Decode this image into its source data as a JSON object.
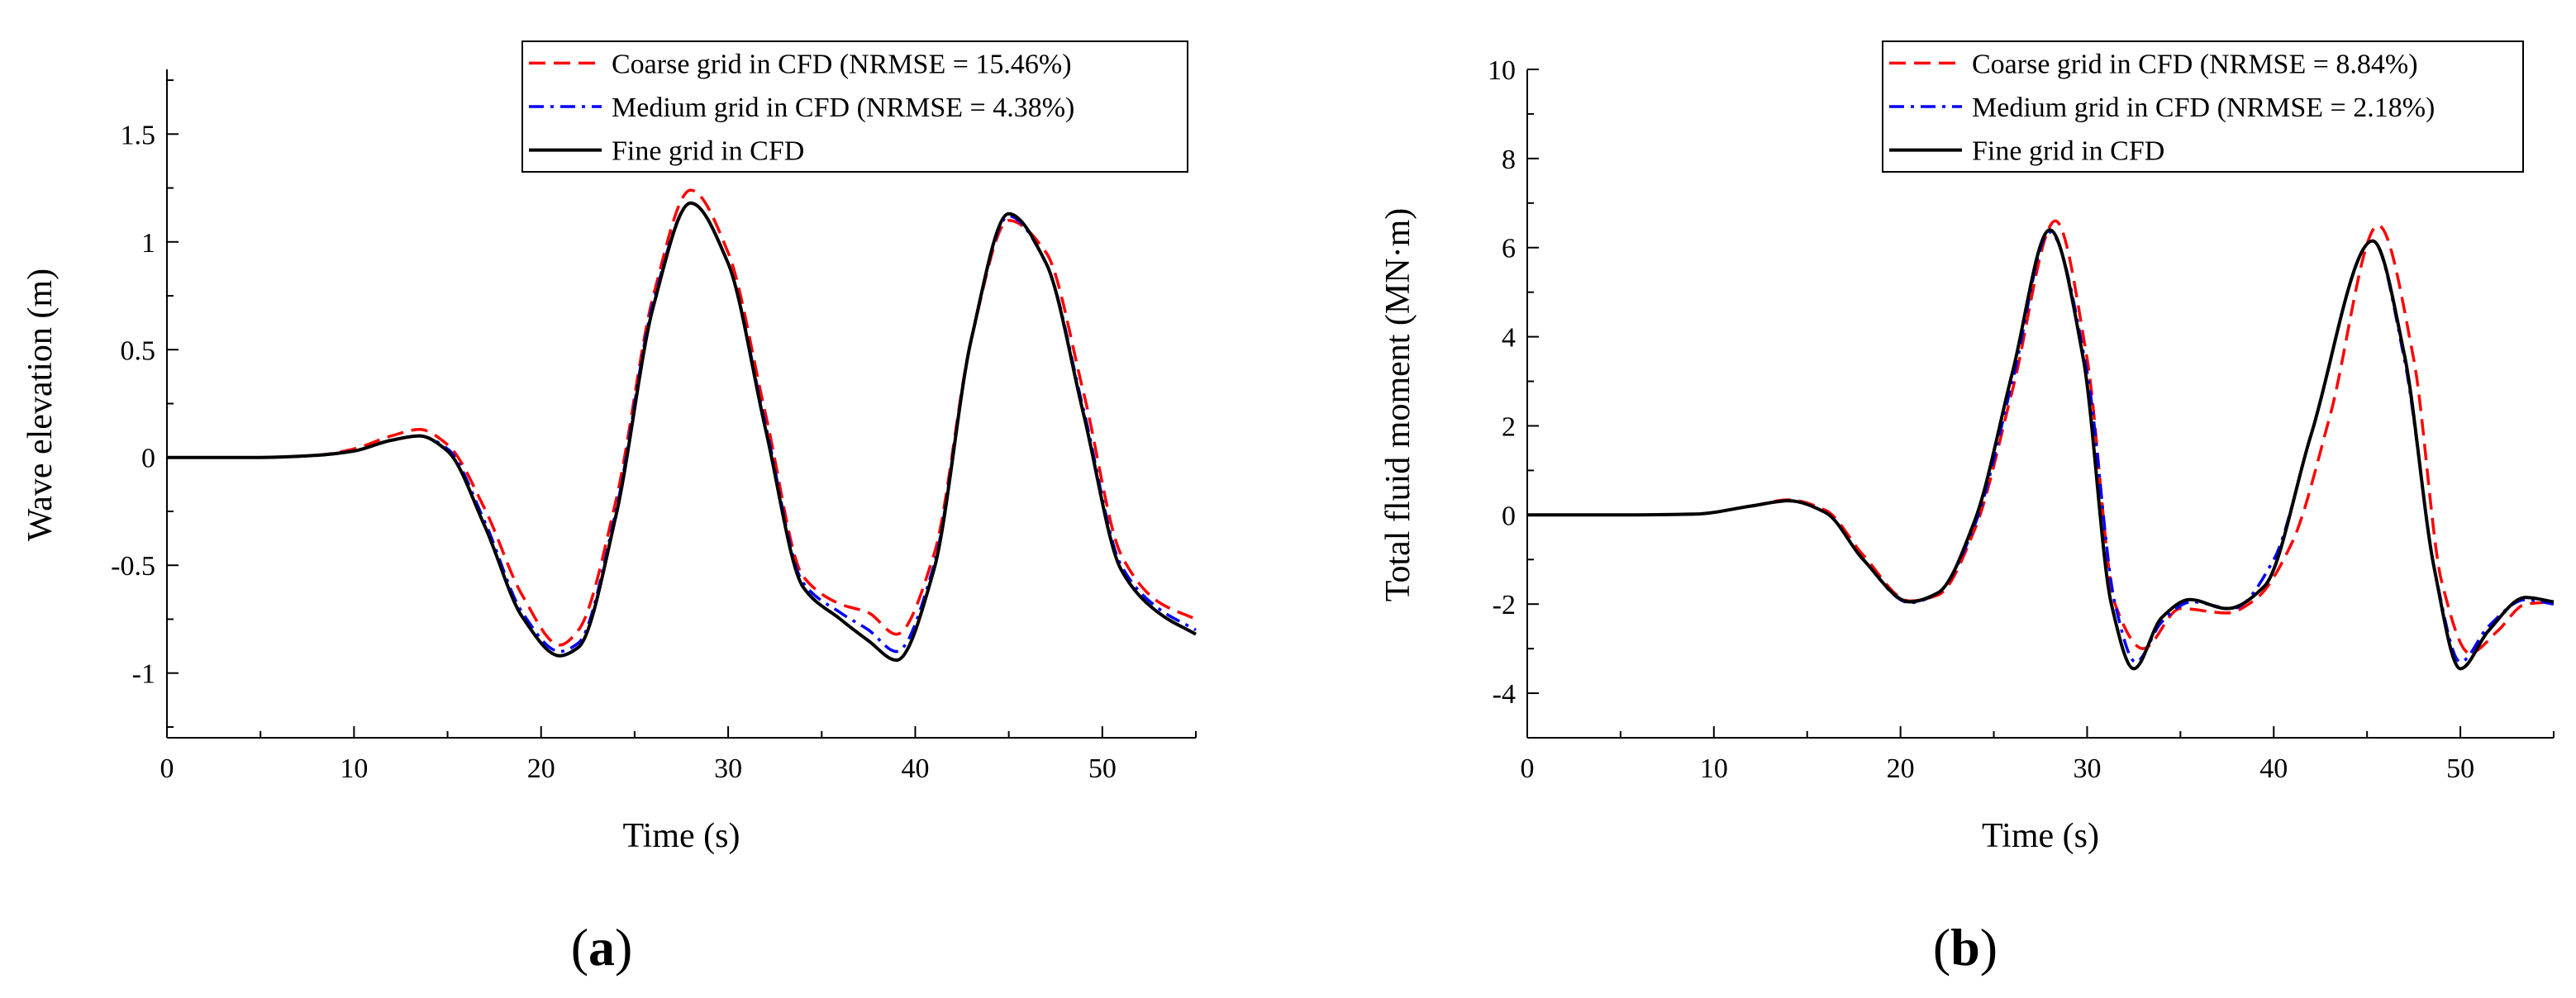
{
  "chart_data": [
    {
      "type": "line",
      "panel_label_open": "(",
      "panel_label_letter": "a",
      "panel_label_close": ")",
      "xlabel": "Time (s)",
      "ylabel": "Wave elevation (m)",
      "xlim": [
        0,
        55
      ],
      "ylim": [
        -1.3,
        1.8
      ],
      "xticks": [
        0,
        10,
        20,
        30,
        40,
        50
      ],
      "yticks": [
        -1,
        -0.5,
        0,
        0.5,
        1,
        1.5
      ],
      "ytick_labels": [
        "-1",
        "-0.5",
        "0",
        "0.5",
        "1",
        "1.5"
      ],
      "legend_position": "top-right",
      "series": [
        {
          "name": "Coarse grid in CFD (NRMSE = 15.46%)",
          "color": "#ff0000",
          "style": "dashed",
          "x": [
            0,
            5,
            8,
            10,
            12,
            13.5,
            15,
            17,
            19,
            21,
            22,
            24,
            26,
            28,
            30,
            32,
            34,
            36,
            37.5,
            39,
            41,
            43,
            45,
            47,
            49,
            51,
            53,
            55
          ],
          "y": [
            0,
            0,
            0.01,
            0.04,
            0.1,
            0.13,
            0.06,
            -0.24,
            -0.64,
            -0.87,
            -0.8,
            -0.2,
            0.75,
            1.24,
            0.95,
            0.2,
            -0.55,
            -0.68,
            -0.72,
            -0.82,
            -0.45,
            0.55,
            1.1,
            0.95,
            0.3,
            -0.45,
            -0.67,
            -0.75
          ]
        },
        {
          "name": "Medium grid in CFD (NRMSE = 4.38%)",
          "color": "#0000ff",
          "style": "dashdot",
          "x": [
            0,
            5,
            8,
            10,
            12,
            13.5,
            15,
            17,
            19,
            21,
            22,
            24,
            26,
            28,
            30,
            32,
            34,
            36,
            37.5,
            39,
            41,
            43,
            45,
            47,
            49,
            51,
            53,
            55
          ],
          "y": [
            0,
            0,
            0.01,
            0.03,
            0.08,
            0.1,
            0.04,
            -0.3,
            -0.72,
            -0.9,
            -0.86,
            -0.25,
            0.72,
            1.18,
            0.9,
            0.15,
            -0.58,
            -0.72,
            -0.8,
            -0.9,
            -0.5,
            0.55,
            1.12,
            0.9,
            0.22,
            -0.5,
            -0.7,
            -0.8
          ]
        },
        {
          "name": "Fine grid in CFD",
          "color": "#000000",
          "style": "solid",
          "x": [
            0,
            5,
            8,
            10,
            12,
            13.5,
            15,
            17,
            19,
            21,
            22,
            24,
            26,
            28,
            30,
            32,
            34,
            36,
            37.5,
            39,
            41,
            43,
            45,
            47,
            49,
            51,
            53,
            55
          ],
          "y": [
            0,
            0,
            0.01,
            0.03,
            0.08,
            0.1,
            0.03,
            -0.32,
            -0.74,
            -0.92,
            -0.88,
            -0.27,
            0.7,
            1.18,
            0.9,
            0.13,
            -0.6,
            -0.75,
            -0.85,
            -0.94,
            -0.52,
            0.55,
            1.13,
            0.9,
            0.2,
            -0.52,
            -0.72,
            -0.82
          ]
        }
      ]
    },
    {
      "type": "line",
      "panel_label_open": "(",
      "panel_label_letter": "b",
      "panel_label_close": ")",
      "xlabel": "Time (s)",
      "ylabel": "Total fluid moment (MN·m)",
      "xlim": [
        0,
        55
      ],
      "ylim": [
        -5,
        10
      ],
      "xticks": [
        0,
        10,
        20,
        30,
        40,
        50
      ],
      "yticks": [
        -4,
        -2,
        0,
        2,
        4,
        6,
        8,
        10
      ],
      "ytick_labels": [
        "-4",
        "-2",
        "0",
        "2",
        "4",
        "6",
        "8",
        "10"
      ],
      "legend_position": "top-right",
      "series": [
        {
          "name": "Coarse grid in CFD (NRMSE = 8.84%)",
          "color": "#ff0000",
          "style": "dashed",
          "x": [
            0,
            5,
            9,
            12,
            14,
            16,
            18,
            20.5,
            22,
            24,
            26,
            28.3,
            30,
            31.5,
            33,
            35,
            37.5,
            39,
            41,
            43,
            45.6,
            47.5,
            49,
            50.5,
            52,
            53.5,
            55
          ],
          "y": [
            0,
            0,
            0.02,
            0.2,
            0.34,
            0.1,
            -0.9,
            -1.93,
            -1.8,
            -0.3,
            2.8,
            6.6,
            3.5,
            -2.0,
            -3.0,
            -2.1,
            -2.2,
            -1.9,
            -0.6,
            2.2,
            6.5,
            3.5,
            -1.5,
            -3.1,
            -2.6,
            -2.0,
            -1.95
          ]
        },
        {
          "name": "Medium grid in CFD (NRMSE = 2.18%)",
          "color": "#0000ff",
          "style": "dashdot",
          "x": [
            0,
            5,
            9,
            12,
            14,
            16,
            18,
            20.5,
            22,
            24,
            26,
            28,
            30,
            31.5,
            32.6,
            34,
            35.6,
            37.8,
            40,
            42,
            45.3,
            47,
            48.7,
            50,
            51.5,
            53.5,
            55
          ],
          "y": [
            0,
            0,
            0.02,
            0.2,
            0.32,
            0.05,
            -1.0,
            -1.97,
            -1.75,
            -0.2,
            3.0,
            6.35,
            3.2,
            -2.0,
            -3.3,
            -2.4,
            -1.95,
            -2.1,
            -1.0,
            1.8,
            6.15,
            3.5,
            -1.4,
            -3.3,
            -2.5,
            -1.9,
            -2.0
          ]
        },
        {
          "name": "Fine grid in CFD",
          "color": "#000000",
          "style": "solid",
          "x": [
            0,
            5,
            9,
            12,
            14,
            16,
            18,
            20.5,
            22,
            24,
            26,
            28,
            29.8,
            31.3,
            32.5,
            34,
            35.5,
            37.5,
            39.5,
            42,
            45.3,
            47,
            48.6,
            50,
            51.5,
            53.5,
            55
          ],
          "y": [
            0,
            0,
            0.02,
            0.2,
            0.32,
            0.05,
            -1.0,
            -1.95,
            -1.75,
            -0.1,
            3.2,
            6.4,
            3.5,
            -2.0,
            -3.45,
            -2.3,
            -1.9,
            -2.1,
            -1.6,
            1.8,
            6.15,
            3.6,
            -1.2,
            -3.45,
            -2.6,
            -1.85,
            -1.95
          ]
        }
      ]
    }
  ]
}
